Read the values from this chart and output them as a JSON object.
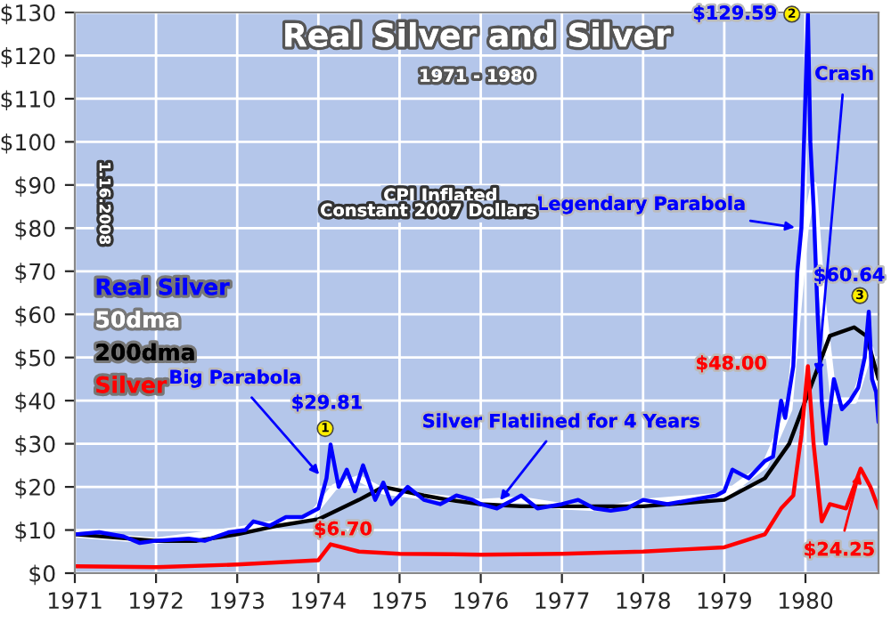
{
  "chart_data": {
    "type": "line",
    "title": "Real Silver and Silver",
    "subtitle": "1971 - 1980",
    "xlim": [
      1971,
      1980.9
    ],
    "xticks": [
      1971,
      1972,
      1973,
      1974,
      1975,
      1976,
      1977,
      1978,
      1979,
      1980
    ],
    "ylim": [
      0,
      130
    ],
    "yticks": [
      {
        "value": 0,
        "label": "$0"
      },
      {
        "value": 10,
        "label": "$10"
      },
      {
        "value": 20,
        "label": "$20"
      },
      {
        "value": 30,
        "label": "$30"
      },
      {
        "value": 40,
        "label": "$40"
      },
      {
        "value": 50,
        "label": "$50"
      },
      {
        "value": 60,
        "label": "$60"
      },
      {
        "value": 70,
        "label": "$70"
      },
      {
        "value": 80,
        "label": "$80"
      },
      {
        "value": 90,
        "label": "$90"
      },
      {
        "value": 100,
        "label": "$100"
      },
      {
        "value": 110,
        "label": "$110"
      },
      {
        "value": 120,
        "label": "$120"
      },
      {
        "value": 130,
        "label": "$130"
      }
    ],
    "grid": true,
    "legend": "left",
    "series": [
      {
        "name": "50dma",
        "color": "#ffffff",
        "x": [
          1971.0,
          1972.0,
          1973.0,
          1973.9,
          1974.2,
          1974.5,
          1974.8,
          1975.2,
          1976.0,
          1976.5,
          1977.0,
          1977.6,
          1978.0,
          1979.0,
          1979.5,
          1979.8,
          1980.0,
          1980.1,
          1980.2,
          1980.35,
          1980.6,
          1980.8,
          1980.9
        ],
        "values": [
          9,
          7.5,
          10,
          13,
          20,
          22,
          19,
          18,
          16.5,
          17,
          15.5,
          15,
          16.5,
          18,
          25,
          38,
          80,
          90,
          65,
          40,
          40,
          52,
          42
        ]
      },
      {
        "name": "200dma",
        "color": "#000000",
        "x": [
          1971.0,
          1972.0,
          1972.5,
          1973.0,
          1973.5,
          1974.0,
          1974.5,
          1974.8,
          1975.3,
          1975.6,
          1976.0,
          1976.5,
          1977.0,
          1978.0,
          1979.0,
          1979.5,
          1979.8,
          1980.1,
          1980.3,
          1980.6,
          1980.75,
          1980.9
        ],
        "values": [
          9,
          7.5,
          7.5,
          9,
          11,
          12.5,
          17,
          20,
          18,
          17,
          16,
          15.5,
          15.5,
          15.5,
          17,
          22,
          30,
          45,
          55,
          57,
          55,
          45
        ]
      },
      {
        "name": "Real Silver",
        "color": "#0000ff",
        "x": [
          1971.0,
          1971.3,
          1971.6,
          1971.8,
          1972.0,
          1972.4,
          1972.6,
          1972.9,
          1973.1,
          1973.2,
          1973.4,
          1973.6,
          1973.8,
          1974.0,
          1974.1,
          1974.15,
          1974.25,
          1974.35,
          1974.45,
          1974.55,
          1974.7,
          1974.8,
          1974.9,
          1975.1,
          1975.3,
          1975.5,
          1975.7,
          1975.9,
          1976.0,
          1976.2,
          1976.4,
          1976.5,
          1976.7,
          1977.0,
          1977.2,
          1977.4,
          1977.6,
          1977.8,
          1978.0,
          1978.3,
          1978.6,
          1978.9,
          1979.0,
          1979.1,
          1979.3,
          1979.5,
          1979.6,
          1979.7,
          1979.75,
          1979.85,
          1979.9,
          1979.95,
          1980.03,
          1980.06,
          1980.1,
          1980.15,
          1980.2,
          1980.25,
          1980.35,
          1980.45,
          1980.55,
          1980.65,
          1980.73,
          1980.78,
          1980.82,
          1980.87,
          1980.9
        ],
        "values": [
          9,
          9.5,
          8.5,
          7,
          7.5,
          8,
          7.5,
          9.5,
          10,
          12,
          11,
          13,
          13,
          15,
          22,
          29.81,
          20,
          24,
          19,
          25,
          17,
          21,
          16,
          20,
          17,
          16,
          18,
          17,
          16,
          15,
          17,
          18,
          15,
          16,
          17,
          15,
          14.5,
          15,
          17,
          16,
          17,
          18,
          19,
          24,
          22,
          26,
          27,
          40,
          36,
          48,
          70,
          80,
          129.59,
          100,
          85,
          60,
          40,
          30,
          45,
          38,
          40,
          43,
          50,
          60.64,
          45,
          42,
          35
        ]
      },
      {
        "name": "Silver",
        "color": "#ff0000",
        "x": [
          1971.0,
          1972.0,
          1973.0,
          1974.0,
          1974.15,
          1974.5,
          1975.0,
          1976.0,
          1977.0,
          1978.0,
          1979.0,
          1979.5,
          1979.7,
          1979.85,
          1979.95,
          1980.03,
          1980.1,
          1980.2,
          1980.3,
          1980.5,
          1980.68,
          1980.8,
          1980.9
        ],
        "values": [
          1.6,
          1.4,
          2,
          3,
          6.7,
          5,
          4.5,
          4.3,
          4.5,
          5,
          6,
          9,
          15,
          18,
          32,
          48,
          30,
          12,
          16,
          15,
          24.25,
          20,
          15
        ]
      }
    ],
    "annotations": [
      {
        "text": "$129.59",
        "x": 1980.03,
        "y": 129.59
      },
      {
        "text": "2",
        "x": 1980.03,
        "y": 129.59
      },
      {
        "text": "$29.81",
        "x": 1974.15,
        "y": 29.81
      },
      {
        "text": "1",
        "x": 1974.15,
        "y": 29.81
      },
      {
        "text": "$60.64",
        "x": 1980.78,
        "y": 60.64
      },
      {
        "text": "3",
        "x": 1980.78,
        "y": 60.64
      },
      {
        "text": "$48.00",
        "x": 1980.03,
        "y": 48
      },
      {
        "text": "$6.70",
        "x": 1974.15,
        "y": 6.7
      },
      {
        "text": "$24.25",
        "x": 1980.68,
        "y": 24.25
      },
      {
        "text": "Big Parabola",
        "x": 1974.05,
        "y": 22
      },
      {
        "text": "Silver Flatlined for 4 Years",
        "x": 1976.2,
        "y": 16
      },
      {
        "text": "Legendary Parabola",
        "x": 1979.93,
        "y": 80
      },
      {
        "text": "Crash",
        "x": 1980.15,
        "y": 45
      },
      "CPI Inflated",
      "Constant 2007 Dollars",
      "1.16.2008"
    ]
  }
}
